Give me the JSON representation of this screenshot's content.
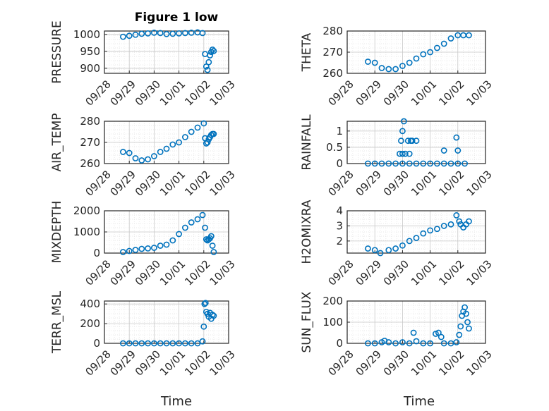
{
  "figure": {
    "title": "Figure 1 low",
    "x_label": "Time"
  },
  "colors": {
    "marker": "#0072BD",
    "axis": "#262626",
    "grid": "#c8c8c8",
    "minor_grid": "#e3e3e3"
  },
  "chart_data": [
    {
      "type": "scatter",
      "ylabel": "PRESSURE",
      "ylim": [
        885,
        1010
      ],
      "yticks": [
        900,
        950,
        1000
      ],
      "xlim": [
        "09/28",
        "10/03"
      ],
      "xticks": [
        "09/28",
        "09/29",
        "09/30",
        "10/01",
        "10/02",
        "10/03"
      ],
      "x_days": [
        0.75,
        1.0,
        1.25,
        1.5,
        1.75,
        2.0,
        2.25,
        2.5,
        2.75,
        3.0,
        3.25,
        3.5,
        3.75,
        3.95,
        4.05,
        4.1,
        4.15,
        4.2,
        4.25,
        4.3,
        4.35,
        4.4
      ],
      "values": [
        993,
        996,
        999,
        1002,
        1003,
        1005,
        1004,
        1001,
        1002,
        1003,
        1004,
        1005,
        1006,
        1004,
        942,
        905,
        895,
        918,
        938,
        948,
        955,
        951
      ]
    },
    {
      "type": "scatter",
      "ylabel": "THETA",
      "ylim": [
        260,
        280
      ],
      "yticks": [
        260,
        270,
        280
      ],
      "xlim": [
        "09/28",
        "10/03"
      ],
      "xticks": [
        "09/28",
        "09/29",
        "09/30",
        "10/01",
        "10/02",
        "10/03"
      ],
      "x_days": [
        0.75,
        1.0,
        1.25,
        1.5,
        1.75,
        2.0,
        2.25,
        2.5,
        2.75,
        3.0,
        3.25,
        3.5,
        3.75,
        4.0,
        4.2,
        4.4
      ],
      "values": [
        265.5,
        265,
        262.5,
        262,
        262,
        263.5,
        265,
        267,
        269,
        270,
        272,
        274,
        276.5,
        278,
        278,
        278
      ]
    },
    {
      "type": "scatter",
      "ylabel": "AIR_TEMP",
      "ylim": [
        260,
        280
      ],
      "yticks": [
        260,
        270,
        280
      ],
      "xlim": [
        "09/28",
        "10/03"
      ],
      "xticks": [
        "09/28",
        "09/29",
        "09/30",
        "10/01",
        "10/02",
        "10/03"
      ],
      "x_days": [
        0.75,
        1.0,
        1.25,
        1.5,
        1.75,
        2.0,
        2.25,
        2.5,
        2.75,
        3.0,
        3.25,
        3.5,
        3.75,
        4.0,
        4.05,
        4.1,
        4.15,
        4.2,
        4.25,
        4.3,
        4.35,
        4.4
      ],
      "values": [
        265.5,
        265,
        262.5,
        261.5,
        262,
        263.5,
        265.5,
        267,
        269,
        270,
        272.5,
        275,
        277,
        279,
        272,
        269.5,
        270,
        271.5,
        272.5,
        273.5,
        274,
        274
      ]
    },
    {
      "type": "scatter",
      "ylabel": "RAINFALL",
      "ylim": [
        0,
        1.3
      ],
      "yticks": [
        0,
        0.5,
        1
      ],
      "xlim": [
        "09/28",
        "10/03"
      ],
      "xticks": [
        "09/28",
        "09/29",
        "09/30",
        "10/01",
        "10/02",
        "10/03"
      ],
      "x_days": [
        0.75,
        1.0,
        1.25,
        1.5,
        1.75,
        2.0,
        2.25,
        2.5,
        2.75,
        3.0,
        3.25,
        3.5,
        3.75,
        4.0,
        4.25,
        1.9,
        1.95,
        2.0,
        2.05,
        2.0,
        2.1,
        2.2,
        2.25,
        2.3,
        2.35,
        2.5,
        3.5,
        3.95,
        4.0
      ],
      "values": [
        0,
        0,
        0,
        0,
        0,
        0,
        0,
        0,
        0,
        0,
        0,
        0,
        0,
        0,
        0,
        0.3,
        0.7,
        1.0,
        1.3,
        0.3,
        0.3,
        0.7,
        0.3,
        0.7,
        0.7,
        0.7,
        0.4,
        0.8,
        0.4
      ]
    },
    {
      "type": "scatter",
      "ylabel": "MIXDEPTH",
      "ylim": [
        0,
        2000
      ],
      "yticks": [
        0,
        1000,
        2000
      ],
      "xlim": [
        "09/28",
        "10/03"
      ],
      "xticks": [
        "09/28",
        "09/29",
        "09/30",
        "10/01",
        "10/02",
        "10/03"
      ],
      "x_days": [
        0.75,
        1.0,
        1.25,
        1.5,
        1.75,
        2.0,
        2.25,
        2.5,
        2.75,
        3.0,
        3.25,
        3.5,
        3.75,
        3.95,
        4.05,
        4.1,
        4.15,
        4.2,
        4.25,
        4.3,
        4.35,
        4.4
      ],
      "values": [
        50,
        100,
        150,
        200,
        220,
        250,
        350,
        400,
        600,
        900,
        1200,
        1450,
        1600,
        1800,
        1200,
        650,
        600,
        650,
        700,
        800,
        350,
        50
      ]
    },
    {
      "type": "scatter",
      "ylabel": "H2OMIXRA",
      "ylim": [
        1.2,
        4
      ],
      "yticks": [
        2,
        3,
        4
      ],
      "xlim": [
        "09/28",
        "10/03"
      ],
      "xticks": [
        "09/28",
        "09/29",
        "09/30",
        "10/01",
        "10/02",
        "10/03"
      ],
      "x_days": [
        0.75,
        1.0,
        1.2,
        1.5,
        1.75,
        2.0,
        2.25,
        2.5,
        2.75,
        3.0,
        3.25,
        3.5,
        3.75,
        3.95,
        4.05,
        4.1,
        4.2,
        4.3,
        4.4
      ],
      "values": [
        1.5,
        1.4,
        1.2,
        1.4,
        1.5,
        1.7,
        2.0,
        2.2,
        2.5,
        2.7,
        2.8,
        3.0,
        3.1,
        3.7,
        3.3,
        3.1,
        2.9,
        3.1,
        3.3
      ]
    },
    {
      "type": "scatter",
      "ylabel": "TERR_MSL",
      "ylim": [
        0,
        430
      ],
      "yticks": [
        0,
        200,
        400
      ],
      "xlim": [
        "09/28",
        "10/03"
      ],
      "xticks": [
        "09/28",
        "09/29",
        "09/30",
        "10/01",
        "10/02",
        "10/03"
      ],
      "x_days": [
        0.75,
        1.0,
        1.25,
        1.5,
        1.75,
        2.0,
        2.25,
        2.5,
        2.75,
        3.0,
        3.25,
        3.5,
        3.75,
        3.95,
        4.0,
        4.03,
        4.07,
        4.1,
        4.15,
        4.2,
        4.25,
        4.3,
        4.35,
        4.4
      ],
      "values": [
        0,
        0,
        0,
        0,
        0,
        0,
        0,
        0,
        0,
        0,
        0,
        0,
        0,
        20,
        170,
        400,
        410,
        320,
        300,
        270,
        310,
        250,
        290,
        280
      ]
    },
    {
      "type": "scatter",
      "ylabel": "SUN_FLUX",
      "ylim": [
        0,
        200
      ],
      "yticks": [
        0,
        100,
        200
      ],
      "xlim": [
        "09/28",
        "10/03"
      ],
      "xticks": [
        "09/28",
        "09/29",
        "09/30",
        "10/01",
        "10/02",
        "10/03"
      ],
      "x_days": [
        0.75,
        1.0,
        1.25,
        1.35,
        1.5,
        1.75,
        2.0,
        2.25,
        2.4,
        2.5,
        2.75,
        3.0,
        3.2,
        3.3,
        3.4,
        3.5,
        3.75,
        3.95,
        4.05,
        4.1,
        4.15,
        4.2,
        4.25,
        4.3,
        4.35,
        4.4
      ],
      "values": [
        0,
        0,
        5,
        12,
        5,
        0,
        5,
        0,
        50,
        10,
        0,
        0,
        45,
        50,
        30,
        0,
        0,
        5,
        40,
        80,
        130,
        150,
        170,
        140,
        100,
        70
      ]
    }
  ]
}
